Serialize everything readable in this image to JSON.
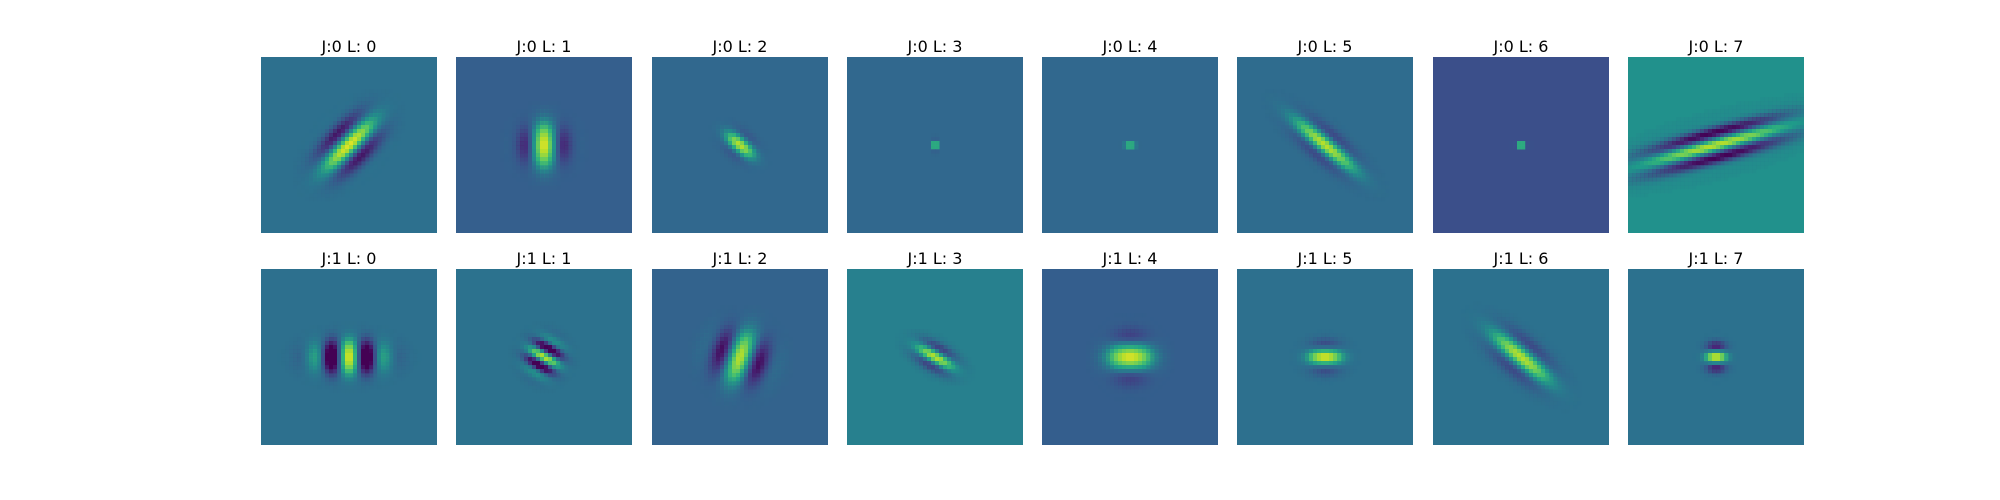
{
  "colormap": "viridis",
  "panels": [
    {
      "title": "J:0 L: 0",
      "bg": "#2d708e",
      "filter": {
        "angle_deg": -45,
        "sigma_u": 0.16,
        "sigma_v": 0.09,
        "k": 28,
        "gain": 1.0
      }
    },
    {
      "title": "J:0 L: 1",
      "bg": "#355f8d",
      "filter": {
        "angle_deg": 90,
        "sigma_u": 0.1,
        "sigma_v": 0.1,
        "k": 22,
        "gain": 1.0
      }
    },
    {
      "title": "J:0 L: 2",
      "bg": "#31688e",
      "filter": {
        "angle_deg": 40,
        "sigma_u": 0.08,
        "sigma_v": 0.05,
        "k": 30,
        "gain": 0.9
      }
    },
    {
      "title": "J:0 L: 3",
      "bg": "#31688e",
      "filter": {
        "angle_deg": 0,
        "sigma_u": 0.012,
        "sigma_v": 0.025,
        "k": 60,
        "gain": 1.0
      }
    },
    {
      "title": "J:0 L: 4",
      "bg": "#31688e",
      "filter": {
        "angle_deg": 0,
        "sigma_u": 0.025,
        "sigma_v": 0.012,
        "k": 60,
        "gain": 1.0
      }
    },
    {
      "title": "J:0 L: 5",
      "bg": "#2f6c8e",
      "filter": {
        "angle_deg": 40,
        "sigma_u": 0.18,
        "sigma_v": 0.06,
        "k": 30,
        "gain": 0.9
      }
    },
    {
      "title": "J:0 L: 6",
      "bg": "#3b4f8a",
      "filter": {
        "angle_deg": 90,
        "sigma_u": 0.012,
        "sigma_v": 0.03,
        "k": 60,
        "gain": 1.0
      }
    },
    {
      "title": "J:0 L: 7",
      "bg": "#21918c",
      "filter": {
        "angle_deg": -15,
        "sigma_u": 0.34,
        "sigma_v": 0.08,
        "k": 40,
        "gain": 0.9
      }
    },
    {
      "title": "J:1 L: 0",
      "bg": "#2d708e",
      "filter": {
        "angle_deg": 90,
        "sigma_u": 0.08,
        "sigma_v": 0.16,
        "k": 30,
        "gain": 1.0
      }
    },
    {
      "title": "J:1 L: 1",
      "bg": "#2c728e",
      "filter": {
        "angle_deg": 30,
        "sigma_u": 0.08,
        "sigma_v": 0.08,
        "k": 55,
        "gain": 0.9
      }
    },
    {
      "title": "J:1 L: 2",
      "bg": "#33638d",
      "filter": {
        "angle_deg": -70,
        "sigma_u": 0.12,
        "sigma_v": 0.12,
        "k": 24,
        "gain": 0.9
      }
    },
    {
      "title": "J:1 L: 3",
      "bg": "#27808e",
      "filter": {
        "angle_deg": 30,
        "sigma_u": 0.1,
        "sigma_v": 0.05,
        "k": 40,
        "gain": 0.9
      }
    },
    {
      "title": "J:1 L: 4",
      "bg": "#345e8d",
      "filter": {
        "angle_deg": 0,
        "sigma_u": 0.1,
        "sigma_v": 0.1,
        "k": 18,
        "gain": 1.0
      }
    },
    {
      "title": "J:1 L: 5",
      "bg": "#2d708e",
      "filter": {
        "angle_deg": 0,
        "sigma_u": 0.08,
        "sigma_v": 0.06,
        "k": 28,
        "gain": 1.0
      }
    },
    {
      "title": "J:1 L: 6",
      "bg": "#2c718e",
      "filter": {
        "angle_deg": 40,
        "sigma_u": 0.17,
        "sigma_v": 0.07,
        "k": 26,
        "gain": 0.9
      }
    },
    {
      "title": "J:1 L: 7",
      "bg": "#2c718e",
      "filter": {
        "angle_deg": 0,
        "sigma_u": 0.05,
        "sigma_v": 0.06,
        "k": 40,
        "gain": 1.0
      }
    }
  ]
}
